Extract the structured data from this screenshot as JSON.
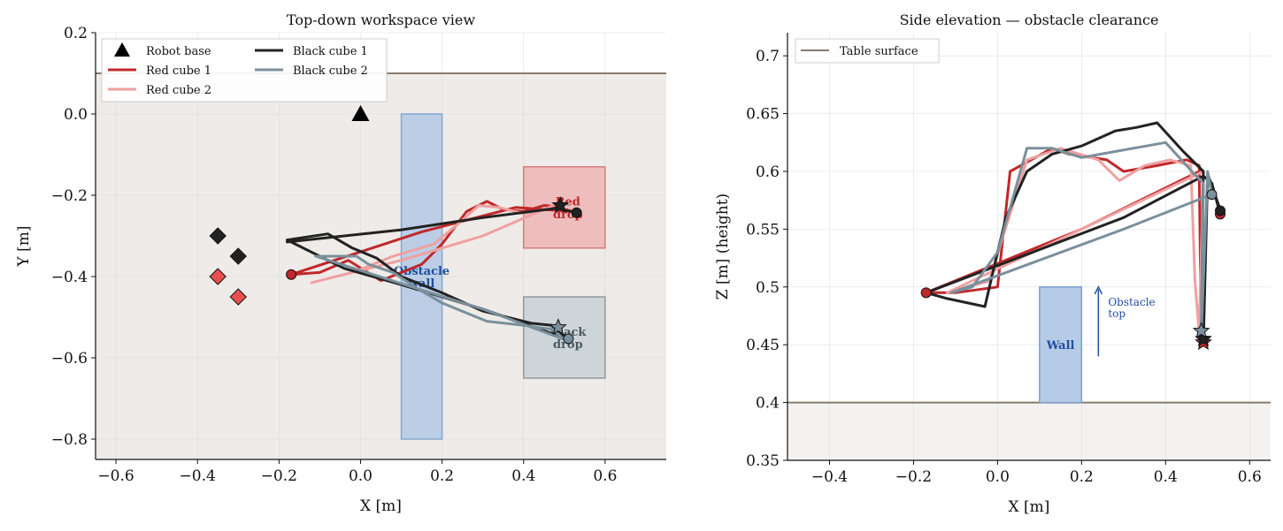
{
  "colors": {
    "red1": "#c0282a",
    "red2": "#f0a0a0",
    "black1": "#222222",
    "black2": "#7a909c",
    "wall_fill": "#b6cbe6",
    "wall_edge": "#7d9fcf",
    "table_line": "#8a7a6c",
    "table_fill_top": "#eeebe8",
    "table_fill_side": "#f3f2f1",
    "red_drop_fill": "#efbcbc",
    "red_drop_edge": "#d46a6a",
    "black_drop_fill": "#cdd4d8",
    "black_drop_edge": "#7f8a8e",
    "annot_blue": "#1f4fa0",
    "red_drop_text": "#c0282a",
    "black_drop_text": "#4a5a63"
  },
  "chart_data": [
    {
      "type": "line",
      "title": "Top-down workspace view",
      "xlabel": "X [m]",
      "ylabel": "Y [m]",
      "xlim": [
        -0.65,
        0.75
      ],
      "ylim": [
        -0.85,
        0.2
      ],
      "xticks": [
        -0.6,
        -0.4,
        -0.2,
        0.0,
        0.2,
        0.4,
        0.6
      ],
      "yticks": [
        0.2,
        0.0,
        -0.2,
        -0.4,
        -0.6,
        -0.8
      ],
      "grid": true,
      "legend_position": "top-left",
      "legend": [
        "Robot base",
        "Red cube 1",
        "Red cube 2",
        "Black cube 1",
        "Black cube 2"
      ],
      "table_edge_y": 0.1,
      "robot_base": {
        "x": 0.0,
        "y": 0.0
      },
      "cube_starts": [
        {
          "x": -0.35,
          "y": -0.3,
          "color": "black1"
        },
        {
          "x": -0.3,
          "y": -0.35,
          "color": "black1"
        },
        {
          "x": -0.35,
          "y": -0.4,
          "color": "red1"
        },
        {
          "x": -0.3,
          "y": -0.45,
          "color": "red1"
        }
      ],
      "obstacle": {
        "x0": 0.1,
        "x1": 0.2,
        "y0": -0.8,
        "y1": 0.0,
        "label": "Obstacle\nwall",
        "label_x": 0.15,
        "label_y": -0.4
      },
      "zones": [
        {
          "name": "red",
          "x0": 0.4,
          "x1": 0.6,
          "y0": -0.33,
          "y1": -0.13,
          "label": "Red\ndrop",
          "label_x": 0.5,
          "label_y": -0.23
        },
        {
          "name": "black",
          "x0": 0.4,
          "x1": 0.6,
          "y0": -0.65,
          "y1": -0.45,
          "label": "Black\ndrop",
          "label_x": 0.5,
          "label_y": -0.55
        }
      ],
      "series": [
        {
          "name": "Red cube 1",
          "color": "red1",
          "x": [
            -0.17,
            -0.1,
            -0.03,
            0.05,
            0.15,
            0.2,
            0.26,
            0.31,
            0.35,
            0.4,
            0.45,
            0.48,
            0.52,
            0.38,
            0.15,
            -0.17
          ],
          "y": [
            -0.395,
            -0.39,
            -0.36,
            -0.41,
            -0.37,
            -0.32,
            -0.24,
            -0.215,
            -0.235,
            -0.24,
            -0.225,
            -0.228,
            -0.24,
            -0.23,
            -0.29,
            -0.395
          ]
        },
        {
          "name": "Red cube 2",
          "color": "red2",
          "x": [
            -0.12,
            -0.02,
            0.08,
            0.18,
            0.24,
            0.29,
            0.34,
            0.4,
            0.45,
            0.48,
            0.3,
            0.1,
            -0.12
          ],
          "y": [
            -0.415,
            -0.39,
            -0.35,
            -0.32,
            -0.27,
            -0.225,
            -0.23,
            -0.245,
            -0.235,
            -0.222,
            -0.3,
            -0.36,
            -0.415
          ]
        },
        {
          "name": "Black cube 1",
          "color": "black1",
          "x": [
            -0.18,
            -0.08,
            -0.02,
            0.04,
            0.1,
            0.15,
            0.2,
            0.3,
            0.42,
            0.47,
            0.51,
            0.3,
            0.1,
            -0.04,
            -0.18
          ],
          "y": [
            -0.31,
            -0.295,
            -0.33,
            -0.355,
            -0.4,
            -0.42,
            -0.44,
            -0.485,
            -0.515,
            -0.52,
            -0.555,
            -0.48,
            -0.42,
            -0.38,
            -0.31
          ],
          "x2": [
            -0.18,
            0.1,
            0.3,
            0.48,
            0.53
          ],
          "y2": [
            -0.315,
            -0.285,
            -0.255,
            -0.232,
            -0.243
          ]
        },
        {
          "name": "Black cube 2",
          "color": "black2",
          "x": [
            -0.11,
            -0.01,
            0.02,
            0.08,
            0.14,
            0.2,
            0.31,
            0.4,
            0.47,
            0.5,
            0.3,
            0.14,
            -0.11
          ],
          "y": [
            -0.35,
            -0.35,
            -0.37,
            -0.39,
            -0.43,
            -0.465,
            -0.51,
            -0.52,
            -0.53,
            -0.555,
            -0.48,
            -0.43,
            -0.35
          ]
        }
      ],
      "end_markers": [
        {
          "x": 0.49,
          "y": -0.225,
          "kind": "star",
          "color": "black1"
        },
        {
          "x": 0.53,
          "y": -0.243,
          "kind": "circle",
          "color": "black1"
        },
        {
          "x": 0.485,
          "y": -0.525,
          "kind": "star",
          "color": "black2"
        },
        {
          "x": 0.51,
          "y": -0.553,
          "kind": "circle",
          "color": "black2"
        },
        {
          "x": -0.17,
          "y": -0.395,
          "kind": "circle",
          "color": "red1"
        }
      ]
    },
    {
      "type": "line",
      "title": "Side elevation — obstacle clearance",
      "xlabel": "X [m]",
      "ylabel": "Z [m]  (height)",
      "xlim": [
        -0.5,
        0.65
      ],
      "ylim": [
        0.35,
        0.72
      ],
      "xticks": [
        -0.4,
        -0.2,
        0.0,
        0.2,
        0.4,
        0.6
      ],
      "yticks": [
        0.7,
        0.65,
        0.6,
        0.55,
        0.5,
        0.45,
        0.4,
        0.35
      ],
      "grid": true,
      "legend_position": "top-left",
      "legend": [
        "Table surface"
      ],
      "table_surface_z": 0.4,
      "wall": {
        "x0": 0.1,
        "x1": 0.2,
        "z0": 0.4,
        "z1": 0.5,
        "label": "Wall",
        "label_x": 0.15,
        "label_z": 0.45
      },
      "obstacle_annotation": {
        "text": "Obstacle\ntop",
        "x": 0.24,
        "z_from": 0.44,
        "z_to": 0.5
      },
      "series": [
        {
          "name": "Red cube 1",
          "color": "red1",
          "x": [
            -0.17,
            -0.1,
            0.0,
            0.03,
            0.13,
            0.17,
            0.26,
            0.3,
            0.38,
            0.45,
            0.48,
            0.485,
            0.48,
            0.2,
            -0.17
          ],
          "z": [
            0.495,
            0.495,
            0.5,
            0.6,
            0.62,
            0.615,
            0.61,
            0.6,
            0.605,
            0.61,
            0.605,
            0.45,
            0.6,
            0.55,
            0.495
          ]
        },
        {
          "name": "Red cube 2",
          "color": "red2",
          "x": [
            -0.12,
            -0.02,
            0.07,
            0.15,
            0.24,
            0.29,
            0.35,
            0.41,
            0.46,
            0.47,
            0.48,
            0.49,
            0.2,
            -0.12
          ],
          "z": [
            0.495,
            0.505,
            0.61,
            0.62,
            0.61,
            0.592,
            0.605,
            0.61,
            0.605,
            0.505,
            0.46,
            0.6,
            0.55,
            0.495
          ]
        },
        {
          "name": "Black cube 1",
          "color": "black1",
          "x": [
            -0.17,
            -0.12,
            -0.03,
            0.0,
            0.02,
            0.07,
            0.13,
            0.2,
            0.28,
            0.33,
            0.38,
            0.44,
            0.49,
            0.485,
            0.49,
            0.5,
            0.53,
            0.53,
            0.51,
            0.49,
            0.3,
            -0.17
          ],
          "z": [
            0.495,
            0.49,
            0.483,
            0.53,
            0.56,
            0.6,
            0.615,
            0.622,
            0.635,
            0.638,
            0.642,
            0.618,
            0.6,
            0.46,
            0.45,
            0.598,
            0.567,
            0.563,
            0.59,
            0.596,
            0.56,
            0.495
          ]
        },
        {
          "name": "Black cube 2",
          "color": "black2",
          "x": [
            -0.11,
            -0.06,
            0.0,
            0.07,
            0.13,
            0.2,
            0.4,
            0.47,
            0.49,
            0.485,
            0.5,
            0.51,
            0.3,
            -0.11
          ],
          "z": [
            0.495,
            0.5,
            0.53,
            0.62,
            0.62,
            0.612,
            0.625,
            0.597,
            0.59,
            0.46,
            0.6,
            0.58,
            0.55,
            0.495
          ]
        }
      ],
      "end_markers": [
        {
          "x": -0.17,
          "z": 0.495,
          "kind": "circle",
          "color": "red1"
        },
        {
          "x": 0.53,
          "z": 0.563,
          "kind": "circle",
          "color": "red1"
        },
        {
          "x": 0.53,
          "z": 0.566,
          "kind": "circle",
          "color": "black1"
        },
        {
          "x": 0.51,
          "z": 0.58,
          "kind": "circle",
          "color": "black2"
        },
        {
          "x": 0.49,
          "z": 0.452,
          "kind": "star",
          "color": "red1"
        },
        {
          "x": 0.49,
          "z": 0.455,
          "kind": "star",
          "color": "black1"
        },
        {
          "x": 0.485,
          "z": 0.462,
          "kind": "star",
          "color": "black2"
        }
      ]
    }
  ]
}
